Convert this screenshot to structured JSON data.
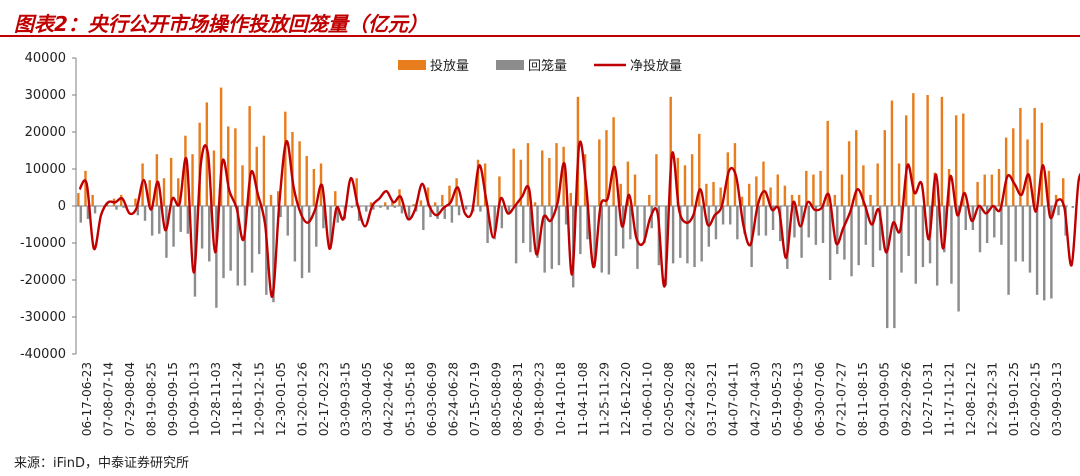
{
  "figure": {
    "title": "图表2：央行公开市场操作投放回笼量（亿元）",
    "source": "来源：iFinD，中泰证券研究所"
  },
  "colors": {
    "title": "#c00000",
    "injection": "#e87d1e",
    "withdrawal": "#8c8c8c",
    "net": "#c00000",
    "axis": "#7f7f7f"
  },
  "chart_data": {
    "type": "bar",
    "combo": "grouped bars + line",
    "title": "图表2：央行公开市场操作投放回笼量（亿元）",
    "xlabel": "",
    "ylabel": "",
    "ylim": [
      -40000,
      40000
    ],
    "yticks": [
      -40000,
      -30000,
      -20000,
      -10000,
      0,
      10000,
      20000,
      30000,
      40000
    ],
    "grid": false,
    "legend_position": "top-right",
    "x_tick_labels": [
      "06-17-06-23",
      "07-08-07-14",
      "07-29-08-04",
      "08-19-08-25",
      "09-09-09-15",
      "10-09-10-13",
      "10-28-11-03",
      "11-18-11-24",
      "12-09-12-15",
      "12-30-01-05",
      "01-20-01-26",
      "02-17-02-23",
      "03-09-03-15",
      "03-30-04-05",
      "04-22-04-26",
      "05-13-05-18",
      "06-03-06-09",
      "06-24-06-28",
      "07-15-07-19",
      "08-05-08-09",
      "08-26-08-31",
      "09-18-09-23",
      "10-14-10-18",
      "11-04-11-08",
      "11-25-11-29",
      "12-16-12-20",
      "01-06-01-10",
      "02-05-02-08",
      "02-24-02-28",
      "03-17-03-21",
      "04-07-04-11",
      "04-27-04-30",
      "05-19-05-23",
      "06-09-06-13",
      "06-30-07-06",
      "07-21-07-27",
      "08-11-08-15",
      "09-01-09-05",
      "09-22-09-26",
      "10-27-10-31",
      "11-17-11-21",
      "12-08-12-12",
      "12-29-12-31",
      "01-19-01-25",
      "02-09-02-15",
      "03-09-03-13"
    ],
    "series": [
      {
        "name": "投放量",
        "type": "bar",
        "values": [
          3500,
          9500,
          3000,
          0,
          1000,
          2000,
          3000,
          0,
          2000,
          11500,
          7000,
          14000,
          7500,
          13000,
          7500,
          19000,
          14000,
          22500,
          28000,
          15000,
          32000,
          21500,
          21000,
          11000,
          27000,
          16000,
          19000,
          3000,
          4000,
          25500,
          20000,
          17500,
          13500,
          10000,
          11500,
          0,
          4000,
          0,
          0,
          7500,
          0,
          1000,
          0,
          1000,
          1500,
          4500,
          0,
          500,
          1500,
          5000,
          1000,
          3000,
          5500,
          7500,
          0,
          0,
          12500,
          11500,
          0,
          8000,
          0,
          15500,
          12500,
          17000,
          1000,
          15000,
          13000,
          17000,
          16000,
          3500,
          29500,
          14000,
          0,
          18000,
          20500,
          24000,
          6000,
          12000,
          8500,
          0,
          3000,
          14000,
          0,
          29500,
          13000,
          11000,
          14000,
          19500,
          6000,
          6500,
          5000,
          14500,
          17000,
          2500,
          6000,
          8000,
          12000,
          5000,
          8500,
          5500,
          3000,
          3000,
          9500,
          8500,
          9500,
          23000,
          3000,
          8500,
          17500,
          20500,
          11000,
          3000,
          11500,
          20500,
          28500,
          11500,
          24500,
          30500,
          0,
          30000,
          9000,
          29500,
          10000,
          24500,
          25000,
          0,
          6500,
          8500,
          8500,
          10000,
          18500,
          21000,
          26500,
          18000,
          26500,
          22500,
          9500,
          3000,
          7500
        ]
      },
      {
        "name": "回笼量",
        "type": "bar",
        "values": [
          -4500,
          -3500,
          -2000,
          0,
          0,
          -1000,
          -500,
          0,
          -2500,
          -4000,
          -8000,
          -7500,
          -14000,
          -11000,
          -7000,
          -7500,
          -24500,
          -11500,
          -15000,
          -27500,
          -19500,
          -17500,
          -21500,
          -21500,
          -18000,
          -13000,
          -24000,
          -26000,
          -3000,
          -8000,
          -15000,
          -19500,
          -18000,
          -11000,
          -6000,
          -11500,
          -4500,
          -3500,
          -500,
          -4000,
          -1500,
          -1000,
          -500,
          -1000,
          -500,
          -2000,
          -3500,
          -1500,
          -6500,
          -3000,
          -3500,
          -3500,
          -4500,
          -2500,
          -1000,
          -1500,
          -1500,
          -10000,
          -9000,
          -6000,
          -2000,
          -15500,
          -10000,
          -12500,
          -14000,
          -18000,
          -17000,
          -16000,
          -5000,
          -22000,
          -13000,
          -9000,
          -16500,
          -18000,
          -18500,
          -13500,
          -11500,
          -9000,
          -17000,
          -10000,
          -6000,
          -16000,
          -21500,
          -15500,
          -14000,
          -15500,
          -16500,
          -15000,
          -11000,
          -9000,
          -5000,
          -5000,
          -9000,
          -7500,
          -16500,
          -8000,
          -8000,
          -6500,
          -9500,
          -17000,
          -8500,
          -14000,
          -8500,
          -10500,
          -10000,
          -20000,
          -13000,
          -14500,
          -19000,
          -16000,
          -10500,
          -16500,
          -12000,
          -33000,
          -33000,
          -18000,
          -13500,
          -21000,
          -16500,
          -15500,
          -21500,
          -12500,
          -21000,
          -28500,
          -6500,
          -6500,
          -12500,
          -10000,
          -8500,
          -10500,
          -24000,
          -15000,
          -15000,
          -18000,
          -24000,
          -25500,
          -25000,
          -2500,
          -8000,
          -500
        ]
      },
      {
        "name": "净投放量",
        "type": "line",
        "values": [
          4500,
          6000,
          -11500,
          -2500,
          1000,
          1000,
          2000,
          -2000,
          -500,
          7000,
          -1000,
          6500,
          -6500,
          2000,
          500,
          12500,
          -18000,
          11500,
          14000,
          -12500,
          12000,
          4000,
          -500,
          -9000,
          9000,
          3000,
          -5000,
          -24500,
          1000,
          17500,
          5000,
          -2000,
          -4500,
          -1000,
          5500,
          -11500,
          -500,
          -3500,
          7500,
          0,
          -5500,
          0,
          2000,
          4000,
          1000,
          2500,
          -3500,
          -1000,
          6000,
          0,
          -2500,
          -500,
          1000,
          5000,
          -2000,
          -1500,
          11000,
          1500,
          -8500,
          2000,
          -2000,
          0,
          2500,
          4500,
          -13000,
          -3000,
          -4000,
          1000,
          11000,
          -18500,
          16500,
          5000,
          -16500,
          0,
          2000,
          10500,
          -5500,
          3000,
          -8500,
          -10000,
          -3000,
          -2000,
          -21500,
          14000,
          -1000,
          -4500,
          -2500,
          4500,
          -5000,
          -2500,
          0,
          9500,
          8000,
          -5000,
          -10500,
          0,
          4000,
          -1000,
          -1000,
          -14000,
          1000,
          -5500,
          1000,
          -1000,
          -500,
          3000,
          -10000,
          -6000,
          -1500,
          4500,
          500,
          -5000,
          -1000,
          -12500,
          -4500,
          -6500,
          11000,
          3500,
          6000,
          -9000,
          8500,
          -11500,
          8000,
          -2500,
          3500,
          -4000,
          0,
          -2000,
          0,
          -1000,
          8000,
          6000,
          3000,
          8500,
          -1500,
          11000,
          -3000,
          1500,
          -500,
          -16000,
          7000,
          7500
        ]
      }
    ]
  }
}
